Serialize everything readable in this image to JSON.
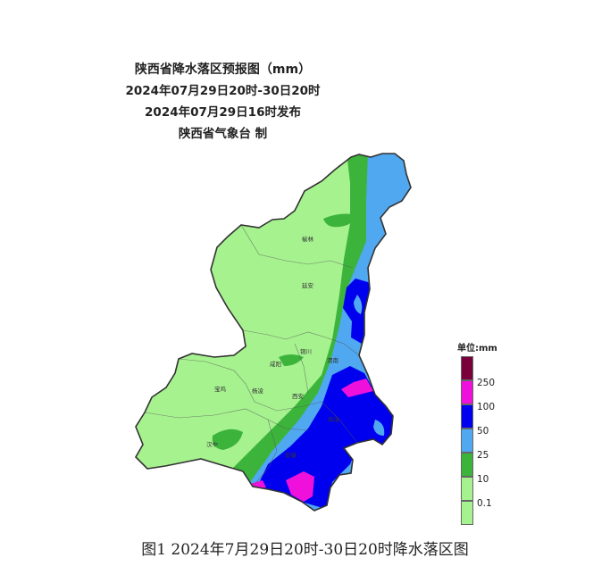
{
  "title": {
    "line1": "陕西省降水落区预报图（mm）",
    "line2": "2024年07月29日20时-30日20时",
    "line3": "2024年07月29日16时发布",
    "line4": "陕西省气象台 制"
  },
  "cities": [
    {
      "name": "榆林"
    },
    {
      "name": "延安"
    },
    {
      "name": "铜川"
    },
    {
      "name": "渭南"
    },
    {
      "name": "咸阳"
    },
    {
      "name": "宝鸡"
    },
    {
      "name": "杨凌"
    },
    {
      "name": "西安"
    },
    {
      "name": "商洛"
    },
    {
      "name": "汉中"
    },
    {
      "name": "安康"
    }
  ],
  "legend": {
    "title": "单位:mm",
    "items": [
      {
        "label": "",
        "color": "#7a003c"
      },
      {
        "label": "250",
        "color": "#f010dc"
      },
      {
        "label": "100",
        "color": "#0000ee"
      },
      {
        "label": "50",
        "color": "#4fa8f0"
      },
      {
        "label": "25",
        "color": "#3cb43c"
      },
      {
        "label": "10",
        "color": "#a6f28f"
      },
      {
        "label": "0.1",
        "color": "#a6f28f"
      }
    ]
  },
  "caption": "图1 2024年7月29日20时-30日20时降水落区图"
}
